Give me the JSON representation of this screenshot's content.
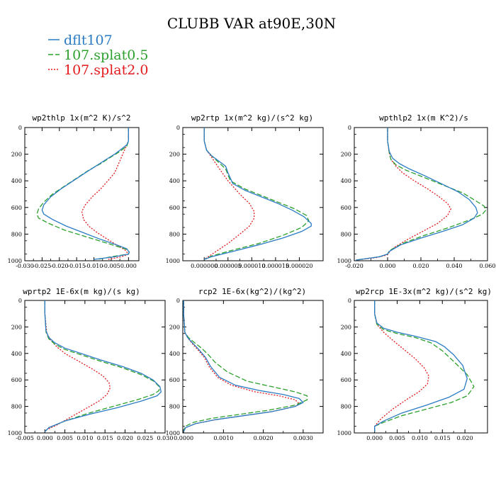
{
  "figure": {
    "title": "CLUBB VAR at90E,30N",
    "legend": [
      {
        "label": "dflt107",
        "color": "#2a7bc4",
        "dash": ""
      },
      {
        "label": "107.splat0.5",
        "color": "#2ca02c",
        "dash": "7,3"
      },
      {
        "label": "107.splat2.0",
        "color": "#e31a1c",
        "dash": "2,2"
      }
    ]
  },
  "chart_data": [
    {
      "type": "line",
      "title": "wp2thlp  1x(m^2 K)/s^2",
      "xlim": [
        -0.03,
        0.003
      ],
      "ylim": [
        1000,
        0
      ],
      "xticks": [
        -0.03,
        -0.025,
        -0.02,
        -0.015,
        -0.01,
        -0.005,
        0.0
      ],
      "xtick_labels": [
        "-0.030",
        "-0.025",
        "-0.020",
        "-0.015",
        "-0.010",
        "-0.005",
        "0.000"
      ],
      "yticks": [
        0,
        200,
        400,
        600,
        800,
        1000
      ],
      "series": [
        {
          "name": "dflt107",
          "x": [
            0,
            0,
            -0.0005,
            -0.002,
            -0.004,
            -0.0065,
            -0.0095,
            -0.0125,
            -0.016,
            -0.0195,
            -0.0225,
            -0.0245,
            -0.025,
            -0.0245,
            -0.022,
            -0.018,
            -0.013,
            -0.008,
            -0.0035,
            -0.0005,
            0.0002,
            0,
            -0.004,
            -0.01
          ],
          "y": [
            0,
            100,
            130,
            160,
            200,
            240,
            290,
            340,
            400,
            460,
            520,
            580,
            620,
            650,
            690,
            740,
            790,
            840,
            880,
            910,
            935,
            950,
            970,
            990
          ]
        },
        {
          "name": "107.splat0.5",
          "x": [
            0,
            0,
            -0.0005,
            -0.0025,
            -0.005,
            -0.008,
            -0.0115,
            -0.015,
            -0.0185,
            -0.022,
            -0.0245,
            -0.026,
            -0.0265,
            -0.026,
            -0.023,
            -0.0185,
            -0.0135,
            -0.0085,
            -0.0035,
            -0.0005,
            0.0002,
            0,
            -0.005,
            -0.009
          ],
          "y": [
            0,
            100,
            140,
            180,
            220,
            270,
            320,
            380,
            440,
            500,
            560,
            610,
            650,
            680,
            720,
            770,
            810,
            850,
            890,
            915,
            935,
            950,
            970,
            990
          ]
        },
        {
          "name": "107.splat2.0",
          "x": [
            0,
            0,
            -0.001,
            -0.002,
            -0.003,
            -0.004,
            -0.006,
            -0.008,
            -0.0105,
            -0.0125,
            -0.0135,
            -0.013,
            -0.0115,
            -0.009,
            -0.006,
            -0.0035,
            -0.001,
            0,
            -0.002,
            -0.006
          ],
          "y": [
            0,
            100,
            160,
            220,
            280,
            340,
            400,
            460,
            520,
            580,
            630,
            690,
            740,
            790,
            840,
            880,
            920,
            950,
            970,
            990
          ]
        }
      ]
    },
    {
      "type": "line",
      "title": "wp2rtp  1x(m^2 kg)/(s^2 kg)",
      "xlim": [
        -4.5e-06,
        2.5e-05
      ],
      "ylim": [
        1000,
        0
      ],
      "xticks": [
        0,
        5e-06,
        1e-05,
        1.5e-05,
        2e-05
      ],
      "xtick_labels": [
        "0.000000",
        "0.000005",
        "0.000010",
        "0.000015",
        "0.000020"
      ],
      "yticks": [
        0,
        200,
        400,
        600,
        800,
        1000
      ],
      "series": [
        {
          "name": "dflt107",
          "x": [
            0,
            0,
            5e-07,
            1.5e-06,
            3e-06,
            4.5e-06,
            5e-06,
            6e-06,
            8.5e-06,
            1.2e-05,
            1.55e-05,
            1.85e-05,
            2.1e-05,
            2.25e-05,
            2.25e-05,
            2.05e-05,
            1.65e-05,
            1.15e-05,
            6e-06,
            1.5e-06,
            0
          ],
          "y": [
            0,
            100,
            170,
            210,
            250,
            290,
            340,
            420,
            470,
            520,
            570,
            620,
            670,
            720,
            740,
            780,
            830,
            880,
            930,
            970,
            990
          ]
        },
        {
          "name": "107.splat0.5",
          "x": [
            0,
            0,
            5e-07,
            1.5e-06,
            3e-06,
            4.5e-06,
            5.5e-06,
            8.5e-06,
            1.2e-05,
            1.55e-05,
            1.9e-05,
            2.15e-05,
            2.2e-05,
            2.05e-05,
            1.65e-05,
            1.15e-05,
            6e-06,
            1.5e-06,
            0
          ],
          "y": [
            0,
            100,
            170,
            210,
            260,
            310,
            400,
            460,
            510,
            560,
            610,
            660,
            700,
            750,
            810,
            870,
            920,
            965,
            990
          ]
        },
        {
          "name": "107.splat2.0",
          "x": [
            0,
            0,
            5e-07,
            1.5e-06,
            3e-06,
            5e-06,
            7.5e-06,
            9.5e-06,
            1.05e-05,
            1.05e-05,
            9.5e-06,
            7.5e-06,
            5e-06,
            2.5e-06,
            0
          ],
          "y": [
            0,
            100,
            170,
            220,
            300,
            400,
            500,
            570,
            630,
            680,
            740,
            800,
            870,
            930,
            990
          ]
        }
      ]
    },
    {
      "type": "line",
      "title": "wpthlp2  1x(m K^2)/s",
      "xlim": [
        -0.02,
        0.06
      ],
      "ylim": [
        1000,
        0
      ],
      "xticks": [
        -0.02,
        0,
        0.02,
        0.04,
        0.06
      ],
      "xtick_labels": [
        "-0.020",
        "0.000",
        "0.020",
        "0.040",
        "0.060"
      ],
      "yticks": [
        0,
        200,
        400,
        600,
        800,
        1000
      ],
      "series": [
        {
          "name": "dflt107",
          "x": [
            0,
            0,
            0.001,
            0.003,
            0.007,
            0.013,
            0.022,
            0.032,
            0.042,
            0.049,
            0.053,
            0.054,
            0.052,
            0.045,
            0.033,
            0.02,
            0.008,
            0.001,
            0,
            -0.005,
            -0.019
          ],
          "y": [
            0,
            100,
            180,
            230,
            270,
            310,
            360,
            420,
            480,
            540,
            600,
            640,
            680,
            730,
            780,
            830,
            880,
            930,
            950,
            970,
            995
          ]
        },
        {
          "name": "107.splat0.5",
          "x": [
            0,
            0,
            0.001,
            0.002,
            0.005,
            0.011,
            0.021,
            0.033,
            0.045,
            0.053,
            0.058,
            0.059,
            0.057,
            0.05,
            0.037,
            0.022,
            0.009,
            0.001,
            0,
            -0.005,
            -0.019
          ],
          "y": [
            0,
            100,
            190,
            240,
            280,
            320,
            370,
            430,
            490,
            550,
            590,
            620,
            650,
            690,
            750,
            810,
            870,
            925,
            950,
            970,
            995
          ]
        },
        {
          "name": "107.splat2.0",
          "x": [
            0,
            0,
            0.001,
            0.002,
            0.005,
            0.009,
            0.016,
            0.024,
            0.031,
            0.036,
            0.038,
            0.036,
            0.03,
            0.021,
            0.012,
            0.004,
            0.001,
            0,
            -0.006,
            -0.019
          ],
          "y": [
            0,
            100,
            190,
            240,
            290,
            340,
            400,
            460,
            520,
            570,
            610,
            660,
            720,
            780,
            840,
            900,
            935,
            955,
            975,
            995
          ]
        }
      ]
    },
    {
      "type": "line",
      "title": "wprtp2  1E-6x(m kg)/(s kg)",
      "xlim": [
        -0.005,
        0.03
      ],
      "ylim": [
        1000,
        0
      ],
      "xticks": [
        -0.005,
        0,
        0.005,
        0.01,
        0.015,
        0.02,
        0.025,
        0.03
      ],
      "xtick_labels": [
        "-0.005",
        "0.000",
        "0.005",
        "0.010",
        "0.015",
        "0.020",
        "0.025",
        "0.030"
      ],
      "yticks": [
        0,
        200,
        400,
        600,
        800,
        1000
      ],
      "series": [
        {
          "name": "dflt107",
          "x": [
            0,
            0,
            0.0003,
            0.001,
            0.0025,
            0.005,
            0.009,
            0.014,
            0.0195,
            0.024,
            0.027,
            0.0287,
            0.029,
            0.028,
            0.024,
            0.018,
            0.011,
            0.005,
            0.001,
            0
          ],
          "y": [
            0,
            100,
            230,
            280,
            320,
            360,
            400,
            450,
            500,
            550,
            600,
            650,
            690,
            720,
            760,
            810,
            860,
            910,
            960,
            990
          ]
        },
        {
          "name": "107.splat0.5",
          "x": [
            0,
            0,
            0.0003,
            0.001,
            0.0025,
            0.005,
            0.009,
            0.014,
            0.0195,
            0.024,
            0.0272,
            0.0285,
            0.0285,
            0.027,
            0.023,
            0.017,
            0.011,
            0.005,
            0.001,
            0
          ],
          "y": [
            0,
            100,
            240,
            290,
            330,
            370,
            410,
            460,
            510,
            560,
            610,
            650,
            680,
            710,
            750,
            800,
            850,
            910,
            960,
            990
          ]
        },
        {
          "name": "107.splat2.0",
          "x": [
            0,
            0,
            0.0005,
            0.0015,
            0.003,
            0.005,
            0.0085,
            0.012,
            0.0145,
            0.016,
            0.0163,
            0.0155,
            0.0135,
            0.01,
            0.0065,
            0.003,
            0.0005,
            0
          ],
          "y": [
            0,
            100,
            250,
            300,
            350,
            400,
            460,
            520,
            570,
            620,
            660,
            710,
            760,
            820,
            880,
            940,
            975,
            990
          ]
        }
      ]
    },
    {
      "type": "line",
      "title": "rcp2  1E-6x(kg^2)/(kg^2)",
      "xlim": [
        -2e-05,
        0.0035
      ],
      "ylim": [
        1000,
        0
      ],
      "xticks": [
        0,
        0.001,
        0.002,
        0.003
      ],
      "xtick_labels": [
        "0.0000",
        "0.0010",
        "0.0020",
        "0.0030"
      ],
      "yticks": [
        0,
        200,
        400,
        600,
        800,
        1000
      ],
      "series": [
        {
          "name": "dflt107",
          "x": [
            0,
            0,
            3e-05,
            0.0001,
            0.00022,
            0.00038,
            0.00055,
            0.00068,
            0.0009,
            0.0013,
            0.0019,
            0.0025,
            0.0029,
            0.003,
            0.0028,
            0.0022,
            0.0015,
            0.0008,
            0.0003,
            5e-05,
            0
          ],
          "y": [
            0,
            100,
            240,
            280,
            320,
            370,
            430,
            500,
            580,
            640,
            680,
            710,
            740,
            770,
            800,
            840,
            870,
            900,
            930,
            960,
            990
          ]
        },
        {
          "name": "107.splat0.5",
          "x": [
            0,
            0,
            3e-05,
            0.00012,
            0.00028,
            0.00045,
            0.00062,
            0.0008,
            0.0011,
            0.0016,
            0.0022,
            0.0028,
            0.0031,
            0.0031,
            0.0028,
            0.0021,
            0.0014,
            0.0007,
            0.00025,
            4e-05,
            0
          ],
          "y": [
            0,
            100,
            240,
            280,
            320,
            360,
            410,
            470,
            540,
            610,
            650,
            690,
            720,
            750,
            790,
            830,
            860,
            890,
            920,
            950,
            990
          ]
        },
        {
          "name": "107.splat2.0",
          "x": [
            0,
            0,
            3e-05,
            0.0001,
            0.0002,
            0.00035,
            0.00052,
            0.00064,
            0.00085,
            0.0012,
            0.0018,
            0.0024,
            0.0028,
            0.0029,
            0.0028,
            0.0022,
            0.0015,
            0.0008,
            0.0003,
            5e-05,
            0
          ],
          "y": [
            0,
            100,
            240,
            280,
            320,
            370,
            430,
            500,
            580,
            640,
            690,
            720,
            750,
            780,
            800,
            840,
            870,
            900,
            930,
            960,
            990
          ]
        }
      ]
    },
    {
      "type": "line",
      "title": "wp2rcp  1E-3x(m^2 kg)/(s^2 kg)",
      "xlim": [
        -0.0045,
        0.025
      ],
      "ylim": [
        1000,
        0
      ],
      "xticks": [
        0,
        0.005,
        0.01,
        0.015,
        0.02
      ],
      "xtick_labels": [
        "0.000",
        "0.005",
        "0.010",
        "0.015",
        "0.020"
      ],
      "yticks": [
        0,
        200,
        400,
        600,
        800,
        1000
      ],
      "series": [
        {
          "name": "dflt107",
          "x": [
            0,
            0,
            0.0005,
            0.002,
            0.005,
            0.009,
            0.0135,
            0.0155,
            0.0175,
            0.0195,
            0.0205,
            0.0198,
            0.0165,
            0.0115,
            0.006,
            0.002,
            0,
            0
          ],
          "y": [
            0,
            100,
            170,
            210,
            240,
            270,
            310,
            350,
            410,
            490,
            590,
            670,
            730,
            790,
            850,
            910,
            950,
            990
          ]
        },
        {
          "name": "107.splat0.5",
          "x": [
            0,
            0,
            0.0005,
            0.002,
            0.005,
            0.009,
            0.0125,
            0.015,
            0.0175,
            0.0205,
            0.022,
            0.0205,
            0.017,
            0.0115,
            0.006,
            0.002,
            0,
            0
          ],
          "y": [
            0,
            100,
            180,
            220,
            250,
            280,
            320,
            380,
            460,
            560,
            650,
            720,
            770,
            820,
            870,
            920,
            950,
            990
          ]
        },
        {
          "name": "107.splat2.0",
          "x": [
            0,
            0,
            0.0005,
            0.002,
            0.004,
            0.0065,
            0.009,
            0.011,
            0.012,
            0.0117,
            0.0098,
            0.007,
            0.004,
            0.0015,
            0,
            0
          ],
          "y": [
            0,
            100,
            180,
            240,
            300,
            370,
            440,
            510,
            570,
            630,
            690,
            750,
            820,
            890,
            950,
            990
          ]
        }
      ]
    }
  ]
}
